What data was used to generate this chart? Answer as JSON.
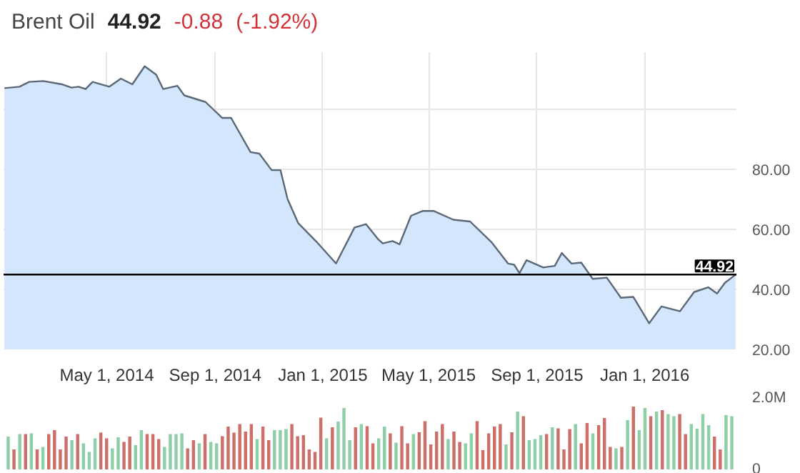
{
  "chart_data": [
    {
      "type": "area",
      "title": "Brent Oil",
      "annotations": [
        "44.92",
        "-0.88",
        "(-1.92%)"
      ],
      "x": [
        "2014-01-05",
        "2014-01-22",
        "2014-02-02",
        "2014-02-18",
        "2014-03-11",
        "2014-03-22",
        "2014-03-30",
        "2014-04-07",
        "2014-04-15",
        "2014-05-04",
        "2014-05-17",
        "2014-05-30",
        "2014-06-13",
        "2014-06-26",
        "2014-07-04",
        "2014-07-20",
        "2014-07-28",
        "2014-08-21",
        "2014-09-09",
        "2014-09-19",
        "2014-10-11",
        "2014-10-21",
        "2014-11-04",
        "2014-11-14",
        "2014-11-22",
        "2014-12-04",
        "2014-12-25",
        "2015-01-16",
        "2015-02-06",
        "2015-02-19",
        "2015-03-05",
        "2015-03-10",
        "2015-03-21",
        "2015-03-29",
        "2015-04-11",
        "2015-04-24",
        "2015-05-07",
        "2015-05-29",
        "2015-06-17",
        "2015-07-11",
        "2015-07-30",
        "2015-08-06",
        "2015-08-12",
        "2015-08-20",
        "2015-09-08",
        "2015-09-21",
        "2015-09-29",
        "2015-10-10",
        "2015-10-21",
        "2015-11-03",
        "2015-11-19",
        "2015-12-05",
        "2015-12-19",
        "2016-01-06",
        "2016-01-20",
        "2016-02-10",
        "2016-02-26",
        "2016-03-13",
        "2016-03-23",
        "2016-04-01",
        "2016-04-13"
      ],
      "series": [
        {
          "color": "#5a6877",
          "values": [
            107.0,
            107.5,
            109.1,
            109.4,
            108.3,
            107.2,
            107.5,
            106.7,
            109.1,
            107.5,
            110.2,
            108.3,
            114.3,
            111.5,
            106.7,
            107.8,
            104.6,
            102.4,
            97.1,
            97.1,
            85.7,
            85.2,
            79.7,
            79.7,
            70.1,
            62.1,
            55.8,
            48.6,
            60.6,
            61.7,
            56.6,
            55.3,
            56.1,
            55.0,
            64.5,
            66.1,
            66.1,
            63.2,
            62.6,
            55.8,
            48.6,
            48.2,
            45.4,
            49.7,
            47.3,
            47.8,
            52.1,
            48.6,
            48.9,
            43.5,
            43.9,
            37.2,
            37.5,
            28.7,
            34.3,
            32.7,
            39.1,
            40.7,
            38.6,
            42.2,
            44.9
          ]
        }
      ],
      "xlim": [
        "2014-01-04",
        "2016-04-14"
      ],
      "xticks": [
        {
          "value": "2014-05-01",
          "label": "May 1, 2014"
        },
        {
          "value": "2014-09-01",
          "label": "Sep 1, 2014"
        },
        {
          "value": "2015-01-01",
          "label": "Jan 1, 2015"
        },
        {
          "value": "2015-05-01",
          "label": "May 1, 2015"
        },
        {
          "value": "2015-09-01",
          "label": "Sep 1, 2015"
        },
        {
          "value": "2016-01-01",
          "label": "Jan 1, 2016"
        }
      ],
      "ylim": [
        20,
        119
      ],
      "yticks": [
        {
          "value": 20,
          "label": "20.00"
        },
        {
          "value": 40,
          "label": "40.00"
        },
        {
          "value": 60,
          "label": "60.00"
        },
        {
          "value": 80,
          "label": "80.00"
        },
        {
          "value": 100,
          "label": null
        }
      ],
      "ref_lines": [
        {
          "axis": "y",
          "value": 44.92,
          "label": "44.92",
          "color": "#000000"
        }
      ],
      "grid": true
    },
    {
      "type": "bar",
      "categories": [
        null,
        null,
        null,
        null,
        null,
        null,
        null,
        null,
        null,
        null,
        null,
        null,
        null,
        null,
        null,
        null,
        null,
        null,
        null,
        null,
        null,
        null,
        null,
        null,
        null,
        null,
        null,
        null,
        null,
        null,
        null,
        null,
        null,
        null,
        null,
        null,
        null,
        null,
        null,
        null,
        null,
        null,
        null,
        null,
        null,
        null,
        null,
        null,
        null,
        null,
        null,
        null,
        null,
        null,
        null,
        null,
        null,
        null,
        null,
        null,
        null,
        null,
        null,
        null,
        null,
        null,
        null,
        null,
        null,
        null,
        null,
        null,
        null,
        null,
        null,
        null,
        null,
        null,
        null,
        null,
        null,
        null,
        null,
        null,
        null,
        null,
        null,
        null,
        null,
        null,
        null,
        null,
        null,
        null,
        null,
        null,
        null,
        null,
        null,
        null,
        null,
        null,
        null,
        null,
        null,
        null,
        null,
        null,
        null,
        null,
        null,
        null,
        null,
        null,
        null,
        null,
        null,
        null,
        null,
        null,
        null,
        null,
        null,
        null,
        null,
        null
      ],
      "values": [
        0.92,
        0.56,
        0.99,
        0.99,
        1.01,
        0.56,
        0.63,
        0.99,
        1.1,
        0.56,
        0.92,
        0.82,
        0.99,
        0.73,
        0.49,
        0.87,
        1.03,
        0.87,
        0.59,
        0.9,
        0.77,
        0.92,
        0.68,
        1.1,
        0.99,
        0.99,
        0.85,
        0.63,
        0.99,
        0.99,
        1.01,
        0.59,
        0.82,
        0.73,
        0.99,
        0.77,
        0.73,
        0.93,
        1.2,
        1.03,
        1.27,
        1.06,
        1.27,
        0.85,
        1.2,
        0.82,
        1.1,
        1.1,
        1.13,
        1.27,
        0.93,
        0.96,
        0.56,
        0.49,
        1.45,
        0.87,
        1.18,
        1.34,
        1.72,
        0.82,
        1.18,
        1.27,
        1.21,
        0.73,
        0.87,
        1.2,
        1.01,
        0.75,
        1.21,
        0.73,
        0.99,
        1.04,
        1.35,
        0.7,
        1.06,
        1.27,
        0.85,
        1.06,
        0.77,
        0.73,
        1.01,
        1.35,
        0.54,
        1.01,
        1.2,
        1.27,
        0.7,
        1.04,
        1.62,
        1.49,
        0.82,
        0.85,
        0.96,
        0.99,
        1.18,
        1.15,
        0.56,
        1.13,
        1.27,
        0.73,
        1.3,
        1.01,
        1.24,
        1.44,
        0.63,
        0.59,
        0.63,
        1.38,
        1.76,
        1.1,
        1.72,
        1.49,
        1.62,
        1.66,
        1.55,
        1.49,
        1.55,
        0.99,
        1.27,
        1.14,
        1.55,
        1.24,
        0.92,
        0.56,
        1.52,
        1.49
      ],
      "colors": [
        "#8fcfa8",
        "#cd6f6a",
        "#8fcfa8",
        "#cd6f6a",
        "#8fcfa8",
        "#cd6f6a",
        "#8fcfa8",
        "#cd6f6a",
        "#cd6f6a",
        "#cd6f6a",
        "#cd6f6a",
        "#8fcfa8",
        "#cd6f6a",
        "#8fcfa8",
        "#8fcfa8",
        "#8fcfa8",
        "#cd6f6a",
        "#cd6f6a",
        "#8fcfa8",
        "#8fcfa8",
        "#cd6f6a",
        "#cd6f6a",
        "#8fcfa8",
        "#8fcfa8",
        "#cd6f6a",
        "#cd6f6a",
        "#cd6f6a",
        "#8fcfa8",
        "#8fcfa8",
        "#8fcfa8",
        "#8fcfa8",
        "#cd6f6a",
        "#cd6f6a",
        "#8fcfa8",
        "#cd6f6a",
        "#8fcfa8",
        "#8fcfa8",
        "#cd6f6a",
        "#cd6f6a",
        "#cd6f6a",
        "#cd6f6a",
        "#cd6f6a",
        "#cd6f6a",
        "#8fcfa8",
        "#cd6f6a",
        "#cd6f6a",
        "#8fcfa8",
        "#8fcfa8",
        "#8fcfa8",
        "#cd6f6a",
        "#cd6f6a",
        "#cd6f6a",
        "#cd6f6a",
        "#cd6f6a",
        "#cd6f6a",
        "#8fcfa8",
        "#cd6f6a",
        "#8fcfa8",
        "#8fcfa8",
        "#8fcfa8",
        "#cd6f6a",
        "#8fcfa8",
        "#cd6f6a",
        "#cd6f6a",
        "#8fcfa8",
        "#8fcfa8",
        "#cd6f6a",
        "#8fcfa8",
        "#cd6f6a",
        "#cd6f6a",
        "#8fcfa8",
        "#cd6f6a",
        "#cd6f6a",
        "#cd6f6a",
        "#cd6f6a",
        "#cd6f6a",
        "#8fcfa8",
        "#cd6f6a",
        "#cd6f6a",
        "#8fcfa8",
        "#8fcfa8",
        "#cd6f6a",
        "#cd6f6a",
        "#cd6f6a",
        "#cd6f6a",
        "#cd6f6a",
        "#8fcfa8",
        "#cd6f6a",
        "#8fcfa8",
        "#cd6f6a",
        "#8fcfa8",
        "#8fcfa8",
        "#8fcfa8",
        "#cd6f6a",
        "#8fcfa8",
        "#cd6f6a",
        "#cd6f6a",
        "#cd6f6a",
        "#8fcfa8",
        "#cd6f6a",
        "#cd6f6a",
        "#8fcfa8",
        "#cd6f6a",
        "#cd6f6a",
        "#cd6f6a",
        "#8fcfa8",
        "#cd6f6a",
        "#8fcfa8",
        "#cd6f6a",
        "#8fcfa8",
        "#8fcfa8",
        "#cd6f6a",
        "#8fcfa8",
        "#cd6f6a",
        "#8fcfa8",
        "#8fcfa8",
        "#cd6f6a",
        "#cd6f6a",
        "#8fcfa8",
        "#8fcfa8",
        "#8fcfa8",
        "#8fcfa8",
        "#cd6f6a",
        "#cd6f6a",
        "#8fcfa8",
        "#8fcfa8"
      ],
      "ylim": [
        0,
        2
      ],
      "yticks": [
        {
          "value": 0,
          "label": "0"
        },
        {
          "value": 2,
          "label": "2.0M"
        }
      ],
      "tick_labels": "y"
    }
  ]
}
